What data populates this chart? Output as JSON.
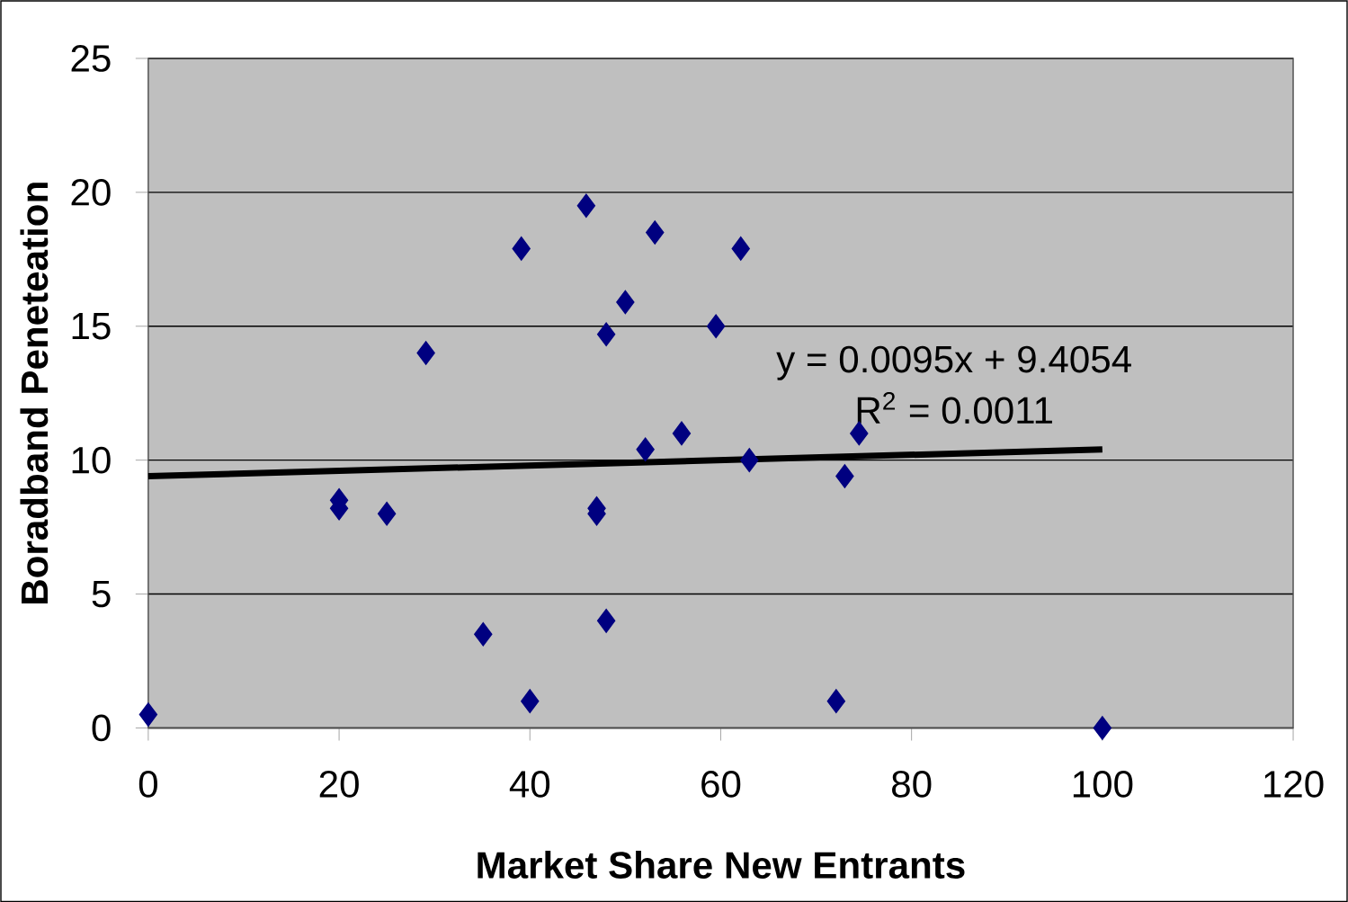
{
  "chart_data": {
    "type": "scatter",
    "xlabel": "Market Share New Entrants",
    "ylabel": "Boradband Peneteation",
    "xlim": [
      0,
      120
    ],
    "xticks": [
      0,
      20,
      40,
      60,
      80,
      100,
      120
    ],
    "ylim": [
      0,
      25
    ],
    "yticks": [
      0,
      5,
      10,
      15,
      20,
      25
    ],
    "grid": "y",
    "series": [
      {
        "marker": "diamond",
        "color": "#000080",
        "x": [
          0,
          20,
          20,
          25,
          29.1,
          35.1,
          39.1,
          40,
          45.9,
          47,
          47,
          48,
          48,
          50,
          52.1,
          53.1,
          55.9,
          59.5,
          62.1,
          63,
          72.1,
          73,
          74.5,
          100
        ],
        "values": [
          0.5,
          8.5,
          8.2,
          8.0,
          14.0,
          3.5,
          17.9,
          1.0,
          19.5,
          8.2,
          8.0,
          14.7,
          4.0,
          15.9,
          10.4,
          18.5,
          11.0,
          15.0,
          17.9,
          10.0,
          1.0,
          9.4,
          11.0,
          0
        ]
      },
      {
        "type": "line",
        "marker": "none",
        "color": "#000000",
        "x": [
          0,
          100
        ],
        "values": [
          9.4,
          10.4
        ]
      }
    ],
    "annotations": [
      "y = 0.0095x + 9.4054",
      "R$^{2}$ = 0.0011"
    ]
  }
}
